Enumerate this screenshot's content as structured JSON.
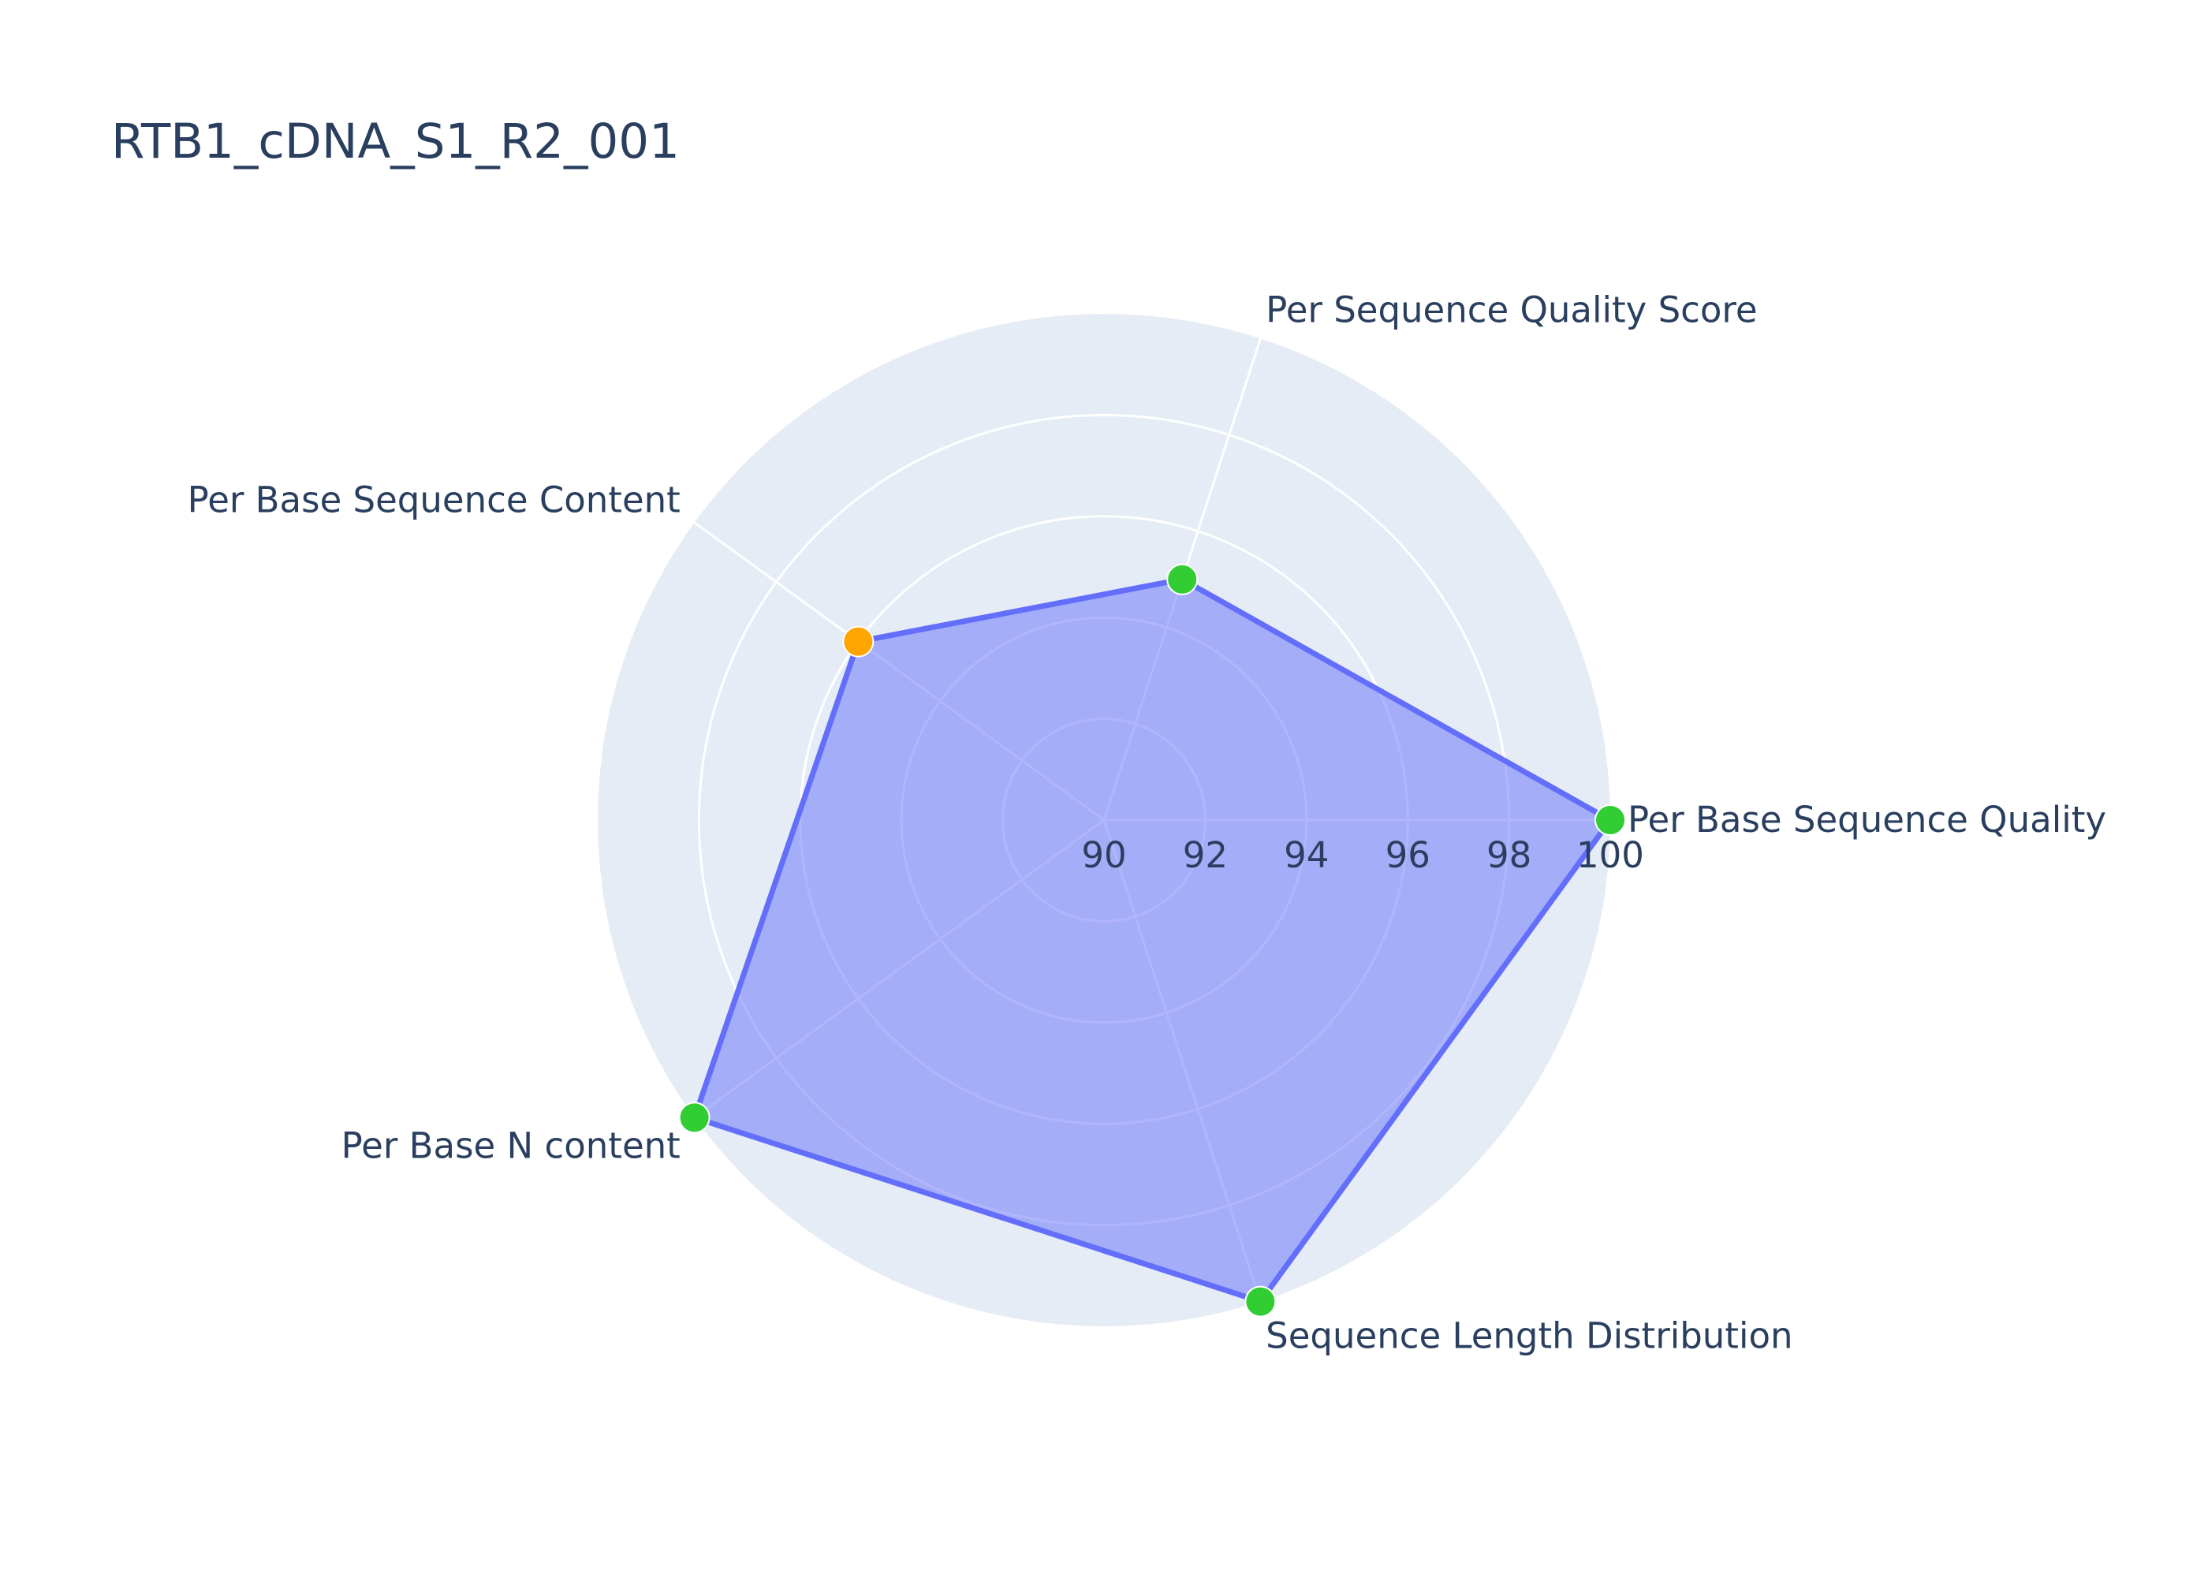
{
  "chart_data": {
    "type": "radar",
    "title": "RTB1_cDNA_S1_R2_001",
    "categories": [
      "Per Base Sequence Quality",
      "Per Sequence Quality Score",
      "Per Base Sequence Content",
      "Per Base N content",
      "Sequence Length Distribution"
    ],
    "series": [
      {
        "values": [
          100,
          95,
          96,
          100,
          100
        ],
        "point_status": [
          "pass",
          "pass",
          "warn",
          "pass",
          "pass"
        ]
      }
    ],
    "radial_range": [
      90,
      100
    ],
    "radial_ticks": [
      "90",
      "92",
      "94",
      "96",
      "98",
      "100"
    ],
    "grid": true,
    "colors": {
      "line": "#636efa",
      "fill": "#a5adf6",
      "polar_background": "#e5ecf6",
      "grid": "#ffffff",
      "pass": "#32cd32",
      "warn": "#ffa500",
      "text": "#2a3f5f"
    }
  }
}
